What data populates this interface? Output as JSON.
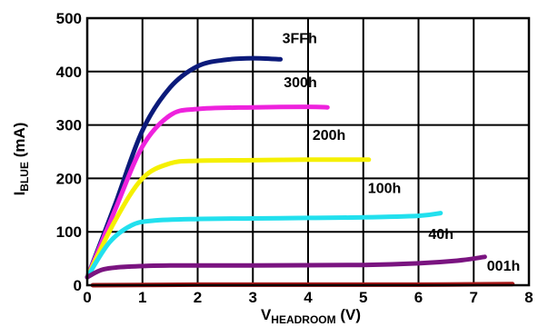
{
  "chart_data": {
    "type": "line",
    "xlim": [
      0,
      8
    ],
    "ylim": [
      0,
      500
    ],
    "x_ticks": [
      "0",
      "1",
      "2",
      "3",
      "4",
      "5",
      "6",
      "7",
      "8"
    ],
    "y_ticks": [
      "0",
      "100",
      "200",
      "300",
      "400",
      "500"
    ],
    "grid": true,
    "ylabel": {
      "main": "I",
      "sub": "BLUE",
      "rest": " (mA)"
    },
    "xlabel": {
      "main": "V",
      "sub": "HEADROOM",
      "rest": " (V)"
    },
    "series": [
      {
        "name": "3FFh",
        "color": "#0b1a7a",
        "points": [
          [
            0,
            15
          ],
          [
            0.5,
            150
          ],
          [
            1,
            290
          ],
          [
            1.5,
            370
          ],
          [
            2,
            410
          ],
          [
            2.5,
            422
          ],
          [
            3,
            425
          ],
          [
            3.5,
            423
          ]
        ]
      },
      {
        "name": "300h",
        "color": "#ee22dd",
        "points": [
          [
            0,
            15
          ],
          [
            0.5,
            140
          ],
          [
            1,
            260
          ],
          [
            1.5,
            318
          ],
          [
            2,
            330
          ],
          [
            3,
            333
          ],
          [
            4,
            334
          ],
          [
            4.35,
            333
          ]
        ]
      },
      {
        "name": "200h",
        "color": "#f5f000",
        "points": [
          [
            0,
            15
          ],
          [
            0.5,
            120
          ],
          [
            1,
            200
          ],
          [
            1.5,
            228
          ],
          [
            2,
            233
          ],
          [
            3,
            234
          ],
          [
            4,
            235
          ],
          [
            5.1,
            235
          ]
        ]
      },
      {
        "name": "100h",
        "color": "#22e0ee",
        "points": [
          [
            0,
            15
          ],
          [
            0.4,
            80
          ],
          [
            0.8,
            112
          ],
          [
            1.2,
            121
          ],
          [
            2,
            124
          ],
          [
            3,
            125
          ],
          [
            4,
            126
          ],
          [
            5,
            127
          ],
          [
            6,
            130
          ],
          [
            6.4,
            135
          ]
        ]
      },
      {
        "name": "40h",
        "color": "#7a1480",
        "points": [
          [
            0,
            15
          ],
          [
            0.3,
            30
          ],
          [
            0.8,
            35
          ],
          [
            1.5,
            37
          ],
          [
            3,
            37
          ],
          [
            5,
            38
          ],
          [
            6,
            41
          ],
          [
            6.7,
            46
          ],
          [
            7.2,
            53
          ]
        ]
      },
      {
        "name": "001h",
        "color": "#aa1818",
        "points": [
          [
            0.1,
            0
          ],
          [
            2,
            1
          ],
          [
            4,
            1
          ],
          [
            6,
            1
          ],
          [
            7.7,
            2
          ]
        ]
      }
    ]
  }
}
